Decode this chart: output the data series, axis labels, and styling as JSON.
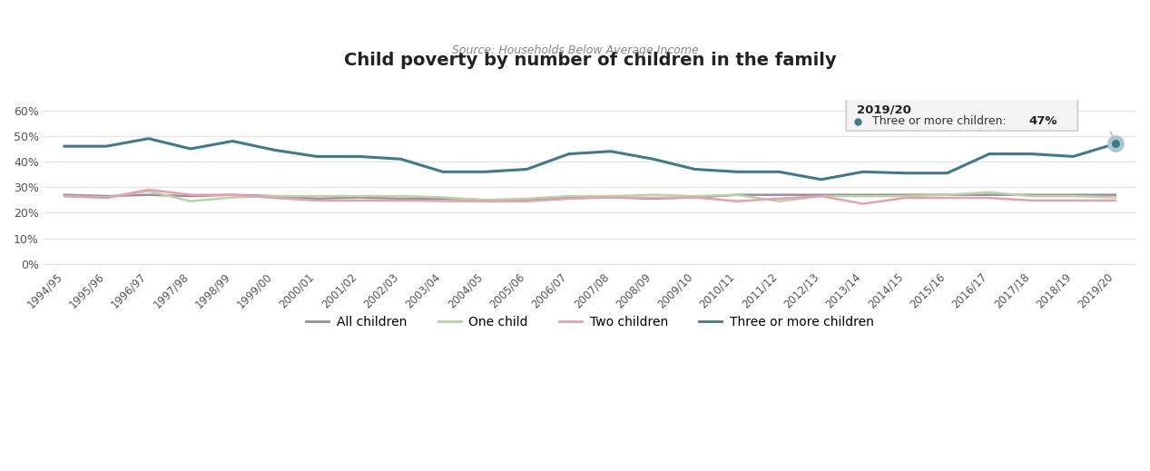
{
  "title": "Child poverty by number of children in the family",
  "subtitle": "Source: Households Below Average Income",
  "years": [
    "1994/95",
    "1995/96",
    "1996/97",
    "1997/98",
    "1998/99",
    "1999/00",
    "2000/01",
    "2001/02",
    "2002/03",
    "2003/04",
    "2004/05",
    "2005/06",
    "2006/07",
    "2007/08",
    "2008/09",
    "2009/10",
    "2010/11",
    "2011/12",
    "2012/13",
    "2013/14",
    "2014/15",
    "2015/16",
    "2016/17",
    "2017/18",
    "2018/19",
    "2019/20"
  ],
  "all_children": [
    0.27,
    0.265,
    0.27,
    0.265,
    0.27,
    0.265,
    0.255,
    0.26,
    0.255,
    0.255,
    0.25,
    0.25,
    0.26,
    0.26,
    0.255,
    0.26,
    0.27,
    0.27,
    0.27,
    0.27,
    0.27,
    0.27,
    0.27,
    0.27,
    0.27,
    0.27
  ],
  "one_child": [
    0.265,
    0.26,
    0.285,
    0.245,
    0.26,
    0.265,
    0.265,
    0.265,
    0.265,
    0.26,
    0.25,
    0.255,
    0.265,
    0.265,
    0.27,
    0.265,
    0.27,
    0.245,
    0.265,
    0.265,
    0.265,
    0.27,
    0.28,
    0.265,
    0.265,
    0.26
  ],
  "two_children": [
    0.265,
    0.258,
    0.29,
    0.27,
    0.27,
    0.258,
    0.248,
    0.248,
    0.248,
    0.246,
    0.245,
    0.245,
    0.255,
    0.26,
    0.258,
    0.26,
    0.245,
    0.255,
    0.265,
    0.235,
    0.258,
    0.258,
    0.258,
    0.248,
    0.248,
    0.248
  ],
  "three_or_more": [
    0.46,
    0.46,
    0.49,
    0.45,
    0.48,
    0.445,
    0.42,
    0.42,
    0.41,
    0.36,
    0.36,
    0.37,
    0.43,
    0.44,
    0.41,
    0.37,
    0.36,
    0.36,
    0.33,
    0.36,
    0.355,
    0.355,
    0.43,
    0.43,
    0.42,
    0.47
  ],
  "all_children_color": "#9b8ea3",
  "one_child_color": "#b8d4a0",
  "two_children_color": "#e8a0b0",
  "three_or_more_color": "#3d7a8a",
  "bg_color": "#ffffff",
  "grid_color": "#e5e5e5",
  "yticks": [
    0.0,
    0.1,
    0.2,
    0.3,
    0.4,
    0.5,
    0.6
  ],
  "ytick_labels": [
    "0%",
    "10%",
    "20%",
    "30%",
    "40%",
    "50%",
    "60%"
  ],
  "tooltip_year": "2019/20",
  "tooltip_series": "Three or more children",
  "tooltip_value": "47%",
  "legend_labels": [
    "All children",
    "One child",
    "Two children",
    "Three or more children"
  ],
  "legend_colors": [
    "#9b8ea3",
    "#b8d4a0",
    "#e8a0b0",
    "#3d7a8a"
  ]
}
